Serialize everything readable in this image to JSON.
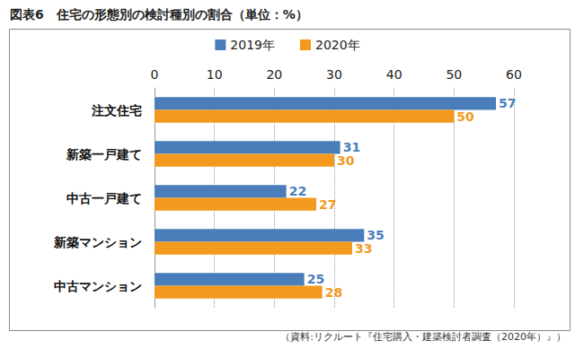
{
  "chart_data": {
    "type": "bar",
    "title": "図表6　住宅の形態別の検討種別の割合（単位：%）",
    "source": "（資料:リクルート『住宅購入・建築検討者調査（2020年）』）",
    "orientation": "horizontal",
    "categories": [
      "注文住宅",
      "新築一戸建て",
      "中古一戸建て",
      "新築マンション",
      "中古マンション"
    ],
    "series": [
      {
        "name": "2019年",
        "color": "#4a7ebb",
        "values": [
          57,
          31,
          22,
          35,
          25
        ]
      },
      {
        "name": "2020年",
        "color": "#f39a1e",
        "values": [
          50,
          30,
          27,
          33,
          28
        ]
      }
    ],
    "xlim": [
      0,
      60
    ],
    "xticks": [
      0,
      10,
      20,
      30,
      40,
      50,
      60
    ],
    "grid": true,
    "legend": "top",
    "data_labels": true
  }
}
